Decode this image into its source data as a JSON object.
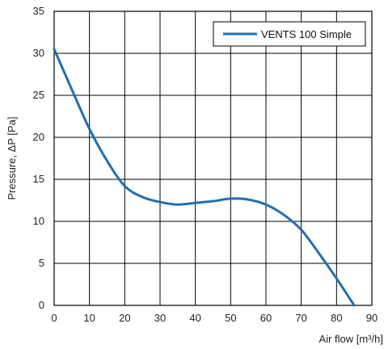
{
  "chart_data": {
    "type": "line",
    "xlabel": "Air flow [m³/h]",
    "ylabel": "Pressure, ΔP [Pa]",
    "xlim": [
      0,
      90
    ],
    "ylim": [
      0,
      35
    ],
    "x_ticks": [
      0,
      10,
      20,
      30,
      40,
      50,
      60,
      70,
      80,
      90
    ],
    "y_ticks": [
      0,
      5,
      10,
      15,
      20,
      25,
      30,
      35
    ],
    "grid": true,
    "legend_position": "top-right",
    "series": [
      {
        "name": "VENTS 100 Simple",
        "color": "#1f6fb2",
        "x": [
          0,
          5,
          10,
          15,
          20,
          25,
          30,
          35,
          40,
          45,
          50,
          55,
          60,
          65,
          70,
          75,
          80,
          85
        ],
        "y": [
          30.5,
          25.7,
          21.0,
          17.2,
          14.2,
          12.9,
          12.3,
          12.0,
          12.2,
          12.4,
          12.7,
          12.6,
          12.0,
          10.8,
          9.0,
          6.2,
          3.2,
          0
        ]
      }
    ]
  }
}
